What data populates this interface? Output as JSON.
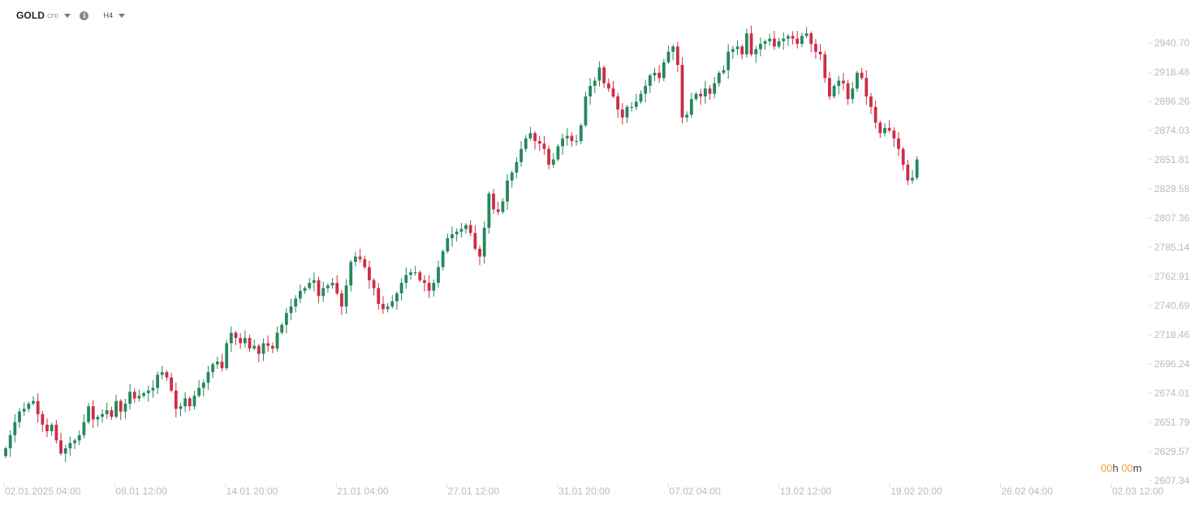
{
  "toolbar": {
    "symbol": "GOLD",
    "symbol_type": "CFD",
    "timeframe": "H4",
    "icons": {
      "symbol_menu": "chevron-down-icon",
      "info": "info-icon",
      "timeframe_menu": "chevron-down-icon"
    }
  },
  "countdown": {
    "hours": "00",
    "h_unit": "h",
    "minutes": "00",
    "m_unit": "m"
  },
  "colors": {
    "up": "#26875c",
    "down": "#cc2e44",
    "axis_text": "#bbbbbb",
    "accent": "#f0a23a"
  },
  "chart_data": {
    "type": "candlestick",
    "symbol": "GOLD",
    "timeframe": "H4",
    "ylim": [
      2607.34,
      2951.5
    ],
    "y_ticks": [
      "2940.70",
      "2918.48",
      "2896.26",
      "2874.03",
      "2851.81",
      "2829.58",
      "2807.36",
      "2785.14",
      "2762.91",
      "2740.69",
      "2718.46",
      "2696.24",
      "2674.01",
      "2651.79",
      "2629.57",
      "2607.34"
    ],
    "x_tick_labels": [
      {
        "date": "02.01.2025",
        "time": "04:00"
      },
      {
        "date": "08.01",
        "time": "12:00"
      },
      {
        "date": "14.01",
        "time": "20:00"
      },
      {
        "date": "21.01",
        "time": "04:00"
      },
      {
        "date": "27.01",
        "time": "12:00"
      },
      {
        "date": "31.01",
        "time": "20:00"
      },
      {
        "date": "07.02",
        "time": "04:00"
      },
      {
        "date": "13.02",
        "time": "12:00"
      },
      {
        "date": "19.02",
        "time": "20:00"
      },
      {
        "date": "26.02",
        "time": "04:00"
      },
      {
        "date": "02.03",
        "time": "12:00"
      }
    ],
    "closes": [
      2632,
      2642,
      2652,
      2660,
      2662,
      2666,
      2668,
      2658,
      2650,
      2645,
      2650,
      2638,
      2628,
      2632,
      2636,
      2638,
      2642,
      2652,
      2664,
      2654,
      2656,
      2658,
      2661,
      2656,
      2668,
      2660,
      2666,
      2675,
      2670,
      2672,
      2674,
      2676,
      2678,
      2688,
      2690,
      2686,
      2676,
      2662,
      2664,
      2670,
      2664,
      2672,
      2678,
      2682,
      2690,
      2696,
      2698,
      2693,
      2712,
      2720,
      2716,
      2712,
      2716,
      2708,
      2710,
      2704,
      2712,
      2710,
      2708,
      2720,
      2726,
      2735,
      2740,
      2746,
      2752,
      2754,
      2758,
      2760,
      2748,
      2754,
      2756,
      2758,
      2750,
      2740,
      2756,
      2774,
      2778,
      2776,
      2770,
      2760,
      2754,
      2742,
      2738,
      2740,
      2744,
      2750,
      2758,
      2764,
      2766,
      2766,
      2760,
      2758,
      2752,
      2758,
      2770,
      2782,
      2792,
      2795,
      2797,
      2799,
      2802,
      2796,
      2784,
      2778,
      2800,
      2826,
      2814,
      2812,
      2820,
      2836,
      2842,
      2850,
      2860,
      2868,
      2872,
      2866,
      2864,
      2860,
      2848,
      2852,
      2862,
      2868,
      2870,
      2866,
      2866,
      2878,
      2900,
      2908,
      2912,
      2922,
      2910,
      2906,
      2900,
      2890,
      2884,
      2892,
      2892,
      2896,
      2902,
      2908,
      2916,
      2918,
      2914,
      2926,
      2934,
      2938,
      2924,
      2884,
      2886,
      2898,
      2902,
      2900,
      2906,
      2902,
      2910,
      2918,
      2920,
      2934,
      2936,
      2938,
      2932,
      2948,
      2932,
      2936,
      2940,
      2942,
      2944,
      2938,
      2942,
      2944,
      2946,
      2944,
      2940,
      2946,
      2948,
      2940,
      2934,
      2932,
      2914,
      2900,
      2908,
      2912,
      2910,
      2898,
      2906,
      2918,
      2914,
      2900,
      2892,
      2880,
      2872,
      2876,
      2874,
      2868,
      2860,
      2848,
      2836,
      2838,
      2852
    ],
    "first_open": 2626,
    "series_summary": {
      "first_close": 2632,
      "max_close": 2948,
      "last_close": 2852
    }
  }
}
